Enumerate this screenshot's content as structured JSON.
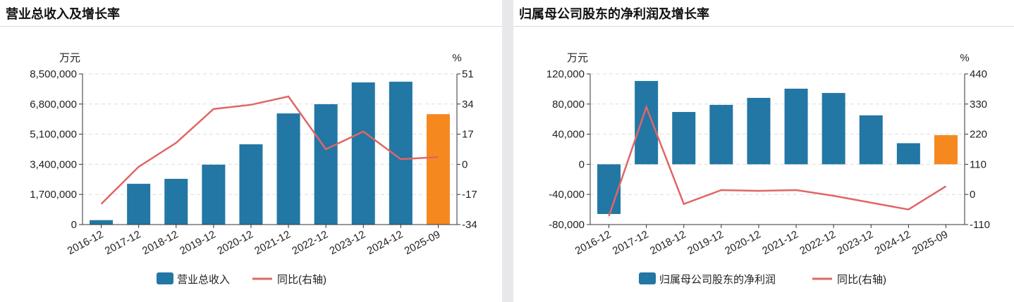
{
  "colors": {
    "bar": "#2277a4",
    "highlight": "#f5891f",
    "line": "#e06666",
    "grid": "#dddddd"
  },
  "chart_data": [
    {
      "type": "bar",
      "title": "营业总收入及增长率",
      "ylabel": "万元",
      "y2label": "%",
      "categories": [
        "2016-12",
        "2017-12",
        "2018-12",
        "2019-12",
        "2020-12",
        "2021-12",
        "2022-12",
        "2023-12",
        "2024-12",
        "2025-09"
      ],
      "ylim": [
        0,
        8500000
      ],
      "yticks": [
        "0",
        "1,700,000",
        "3,400,000",
        "5,100,000",
        "6,800,000",
        "8,500,000"
      ],
      "y2lim": [
        -34,
        51
      ],
      "y2ticks": [
        "-34",
        "-17",
        "0",
        "17",
        "34",
        "51"
      ],
      "series": [
        {
          "name": "营业总收入",
          "type": "bar",
          "values": [
            250000,
            2300000,
            2580000,
            3380000,
            4530000,
            6270000,
            6790000,
            8020000,
            8060000,
            6230000
          ]
        },
        {
          "name": "同比(右轴)",
          "type": "line",
          "axis": "right",
          "values": [
            -22.4,
            -1.4,
            12.1,
            31.2,
            33.6,
            38.3,
            8.5,
            18.5,
            2.9,
            4.1
          ]
        }
      ],
      "highlight_index": 9,
      "grid": true,
      "legend": "bottom"
    },
    {
      "type": "bar",
      "title": "归属母公司股东的净利润及增长率",
      "ylabel": "万元",
      "y2label": "%",
      "categories": [
        "2016-12",
        "2017-12",
        "2018-12",
        "2019-12",
        "2020-12",
        "2021-12",
        "2022-12",
        "2023-12",
        "2024-12",
        "2025-09"
      ],
      "ylim": [
        -80000,
        120000
      ],
      "yticks": [
        "-80,000",
        "-40,000",
        "0",
        "40,000",
        "80,000",
        "120,000"
      ],
      "y2lim": [
        -110,
        440
      ],
      "y2ticks": [
        "-110",
        "0",
        "110",
        "220",
        "330",
        "440"
      ],
      "series": [
        {
          "name": "归属母公司股东的净利润",
          "type": "bar",
          "values": [
            -66000,
            110600,
            69500,
            78900,
            88200,
            100400,
            94700,
            65000,
            28000,
            38700
          ]
        },
        {
          "name": "同比(右轴)",
          "type": "line",
          "axis": "right",
          "values": [
            -79,
            319,
            -35,
            16,
            13,
            16,
            -5,
            -30,
            -55,
            30
          ]
        }
      ],
      "highlight_index": 9,
      "grid": true,
      "legend": "bottom"
    }
  ]
}
